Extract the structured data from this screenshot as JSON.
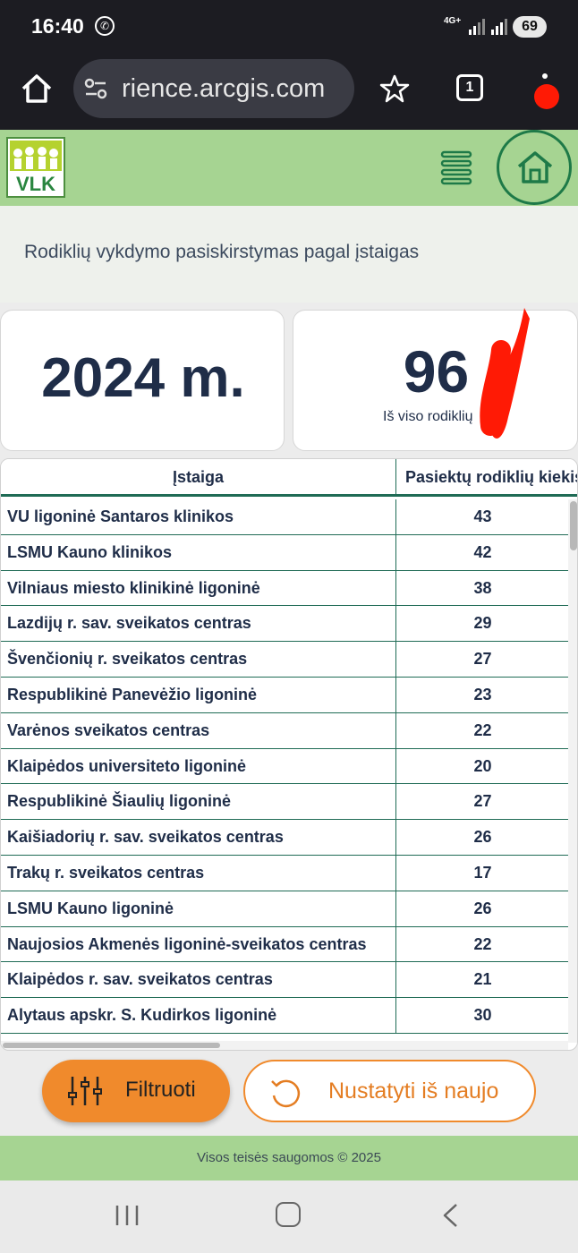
{
  "status_bar": {
    "time": "16:40",
    "network": "4G+",
    "battery": "69"
  },
  "browser": {
    "url": "rience.arcgis.com",
    "tab_count": "1"
  },
  "header": {
    "logo_text": "VLK",
    "page_title": "Rodiklių vykdymo pasiskirstymas pagal įstaigas"
  },
  "cards": {
    "year": "2024 m.",
    "total_value": "96",
    "total_label": "Iš viso rodiklių"
  },
  "table": {
    "columns": [
      "Įstaiga",
      "Pasiektų rodiklių kiekis"
    ],
    "rows": [
      {
        "name": "VU ligoninė Santaros klinikos",
        "count": "43"
      },
      {
        "name": "LSMU Kauno klinikos",
        "count": "42"
      },
      {
        "name": "Vilniaus miesto klinikinė ligoninė",
        "count": "38"
      },
      {
        "name": "Lazdijų r. sav. sveikatos centras",
        "count": "29"
      },
      {
        "name": "Švenčionių r. sveikatos centras",
        "count": "27"
      },
      {
        "name": "Respublikinė Panevėžio ligoninė",
        "count": "23"
      },
      {
        "name": "Varėnos sveikatos centras",
        "count": "22"
      },
      {
        "name": "Klaipėdos universiteto ligoninė",
        "count": "20"
      },
      {
        "name": "Respublikinė Šiaulių ligoninė",
        "count": "27"
      },
      {
        "name": "Kaišiadorių r. sav. sveikatos centras",
        "count": "26"
      },
      {
        "name": "Trakų r. sveikatos centras",
        "count": "17"
      },
      {
        "name": "LSMU Kauno ligoninė",
        "count": "26"
      },
      {
        "name": "Naujosios Akmenės ligoninė-sveikatos centras",
        "count": "22"
      },
      {
        "name": "Klaipėdos r. sav. sveikatos centras",
        "count": "21"
      },
      {
        "name": "Alytaus apskr. S. Kudirkos ligoninė",
        "count": "30"
      }
    ]
  },
  "actions": {
    "filter_label": "Filtruoti",
    "reset_label": "Nustatyti iš naujo"
  },
  "footer": {
    "text": "Visos teisės saugomos © 2025"
  },
  "colors": {
    "header_green": "#a6d492",
    "accent_orange": "#f08a2c",
    "table_line": "#1f6b55",
    "text_navy": "#1f2d48"
  },
  "icons": [
    "home-icon",
    "site-settings-icon",
    "star-icon",
    "tabs-icon",
    "menu-icon",
    "hamburger-icon",
    "home-circle-icon",
    "sliders-icon",
    "reset-icon",
    "recent-apps-icon",
    "nav-home-icon",
    "back-icon"
  ]
}
